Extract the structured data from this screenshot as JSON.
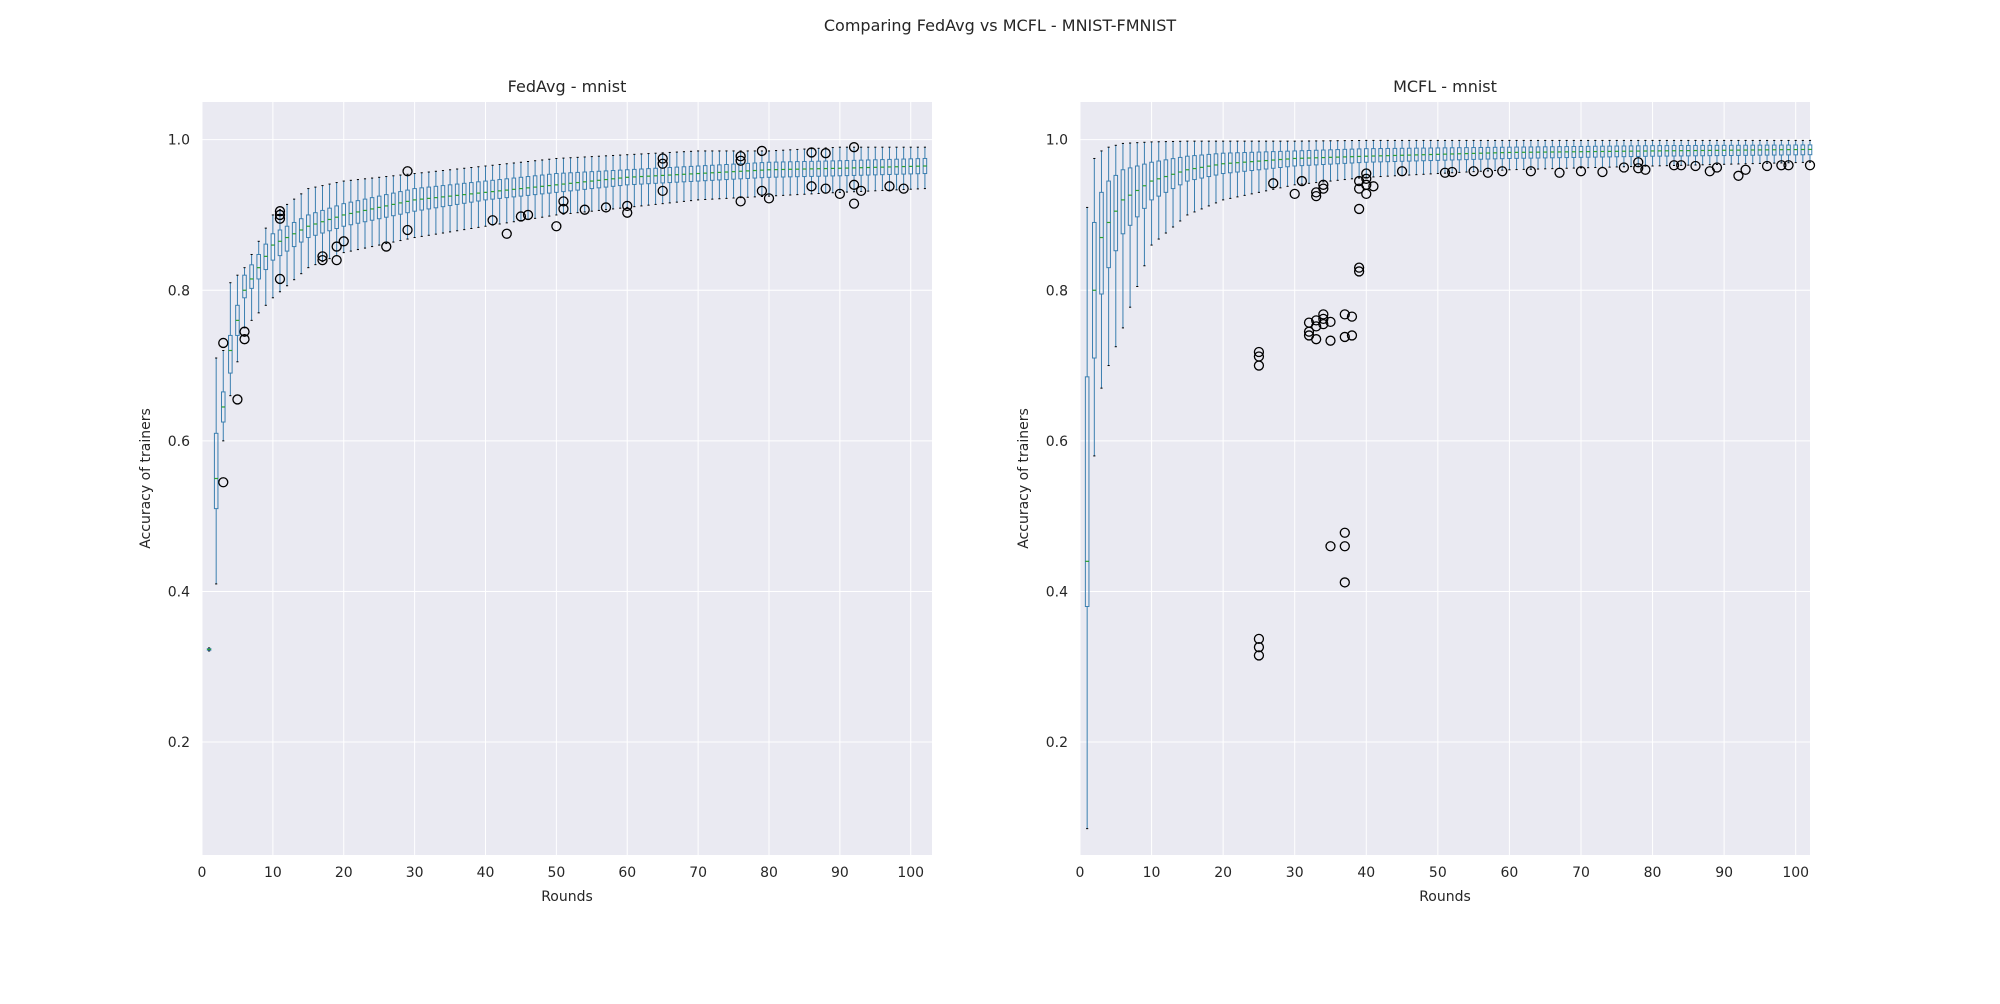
{
  "figure": {
    "title": "Comparing FedAvg vs MCFL - MNIST-FMNIST"
  },
  "chart_data": [
    {
      "type": "box",
      "title": "FedAvg - mnist",
      "xlabel": "Rounds",
      "ylabel": "Accuracy of trainers",
      "xlim": [
        0,
        103
      ],
      "ylim": [
        0.05,
        1.05
      ],
      "xticks": [
        0,
        10,
        20,
        30,
        40,
        50,
        60,
        70,
        80,
        90,
        100
      ],
      "yticks": [
        0.2,
        0.4,
        0.6,
        0.8,
        1.0
      ],
      "xtick_labels": [
        "0",
        "10",
        "20",
        "30",
        "40",
        "50",
        "60",
        "70",
        "80",
        "90",
        "100"
      ],
      "ytick_labels": [
        "0.2",
        "0.4",
        "0.6",
        "0.8",
        "1.0"
      ],
      "grid": true,
      "rounds": {
        "start": 1,
        "end": 102
      },
      "box_colors": {
        "box": "#3b7fb0",
        "median": "#2ca02c",
        "flier": "#000000"
      },
      "anchors": [
        {
          "round": 1,
          "q1": 0.322,
          "med": 0.323,
          "q3": 0.324,
          "lo": 0.321,
          "hi": 0.325
        },
        {
          "round": 2,
          "q1": 0.51,
          "med": 0.55,
          "q3": 0.61,
          "lo": 0.41,
          "hi": 0.71
        },
        {
          "round": 3,
          "q1": 0.625,
          "med": 0.645,
          "q3": 0.665,
          "lo": 0.6,
          "hi": 0.72
        },
        {
          "round": 4,
          "q1": 0.69,
          "med": 0.72,
          "q3": 0.74,
          "lo": 0.66,
          "hi": 0.81
        },
        {
          "round": 6,
          "q1": 0.79,
          "med": 0.8,
          "q3": 0.82,
          "lo": 0.75,
          "hi": 0.83
        },
        {
          "round": 10,
          "q1": 0.84,
          "med": 0.86,
          "q3": 0.875,
          "lo": 0.79,
          "hi": 0.9
        },
        {
          "round": 15,
          "q1": 0.87,
          "med": 0.885,
          "q3": 0.9,
          "lo": 0.83,
          "hi": 0.935
        },
        {
          "round": 20,
          "q1": 0.885,
          "med": 0.9,
          "q3": 0.915,
          "lo": 0.85,
          "hi": 0.945
        },
        {
          "round": 30,
          "q1": 0.905,
          "med": 0.92,
          "q3": 0.935,
          "lo": 0.87,
          "hi": 0.955
        },
        {
          "round": 40,
          "q1": 0.92,
          "med": 0.93,
          "q3": 0.945,
          "lo": 0.885,
          "hi": 0.965
        },
        {
          "round": 50,
          "q1": 0.93,
          "med": 0.94,
          "q3": 0.955,
          "lo": 0.9,
          "hi": 0.975
        },
        {
          "round": 60,
          "q1": 0.94,
          "med": 0.95,
          "q3": 0.96,
          "lo": 0.91,
          "hi": 0.98
        },
        {
          "round": 70,
          "q1": 0.945,
          "med": 0.955,
          "q3": 0.965,
          "lo": 0.92,
          "hi": 0.985
        },
        {
          "round": 80,
          "q1": 0.95,
          "med": 0.96,
          "q3": 0.97,
          "lo": 0.925,
          "hi": 0.985
        },
        {
          "round": 90,
          "q1": 0.952,
          "med": 0.962,
          "q3": 0.972,
          "lo": 0.93,
          "hi": 0.99
        },
        {
          "round": 102,
          "q1": 0.955,
          "med": 0.965,
          "q3": 0.975,
          "lo": 0.935,
          "hi": 0.99
        }
      ],
      "outliers": [
        {
          "round": 3,
          "value": 0.545
        },
        {
          "round": 3,
          "value": 0.73
        },
        {
          "round": 5,
          "value": 0.655
        },
        {
          "round": 6,
          "value": 0.735
        },
        {
          "round": 6,
          "value": 0.745
        },
        {
          "round": 11,
          "value": 0.815
        },
        {
          "round": 11,
          "value": 0.895
        },
        {
          "round": 11,
          "value": 0.9
        },
        {
          "round": 11,
          "value": 0.905
        },
        {
          "round": 17,
          "value": 0.84
        },
        {
          "round": 17,
          "value": 0.845
        },
        {
          "round": 19,
          "value": 0.84
        },
        {
          "round": 19,
          "value": 0.858
        },
        {
          "round": 20,
          "value": 0.865
        },
        {
          "round": 26,
          "value": 0.858
        },
        {
          "round": 29,
          "value": 0.88
        },
        {
          "round": 29,
          "value": 0.958
        },
        {
          "round": 41,
          "value": 0.893
        },
        {
          "round": 43,
          "value": 0.875
        },
        {
          "round": 45,
          "value": 0.898
        },
        {
          "round": 46,
          "value": 0.9
        },
        {
          "round": 50,
          "value": 0.885
        },
        {
          "round": 51,
          "value": 0.908
        },
        {
          "round": 51,
          "value": 0.918
        },
        {
          "round": 54,
          "value": 0.907
        },
        {
          "round": 57,
          "value": 0.91
        },
        {
          "round": 60,
          "value": 0.903
        },
        {
          "round": 60,
          "value": 0.912
        },
        {
          "round": 65,
          "value": 0.932
        },
        {
          "round": 65,
          "value": 0.968
        },
        {
          "round": 65,
          "value": 0.975
        },
        {
          "round": 76,
          "value": 0.918
        },
        {
          "round": 76,
          "value": 0.972
        },
        {
          "round": 76,
          "value": 0.978
        },
        {
          "round": 79,
          "value": 0.932
        },
        {
          "round": 79,
          "value": 0.985
        },
        {
          "round": 80,
          "value": 0.922
        },
        {
          "round": 86,
          "value": 0.938
        },
        {
          "round": 86,
          "value": 0.983
        },
        {
          "round": 88,
          "value": 0.935
        },
        {
          "round": 88,
          "value": 0.982
        },
        {
          "round": 90,
          "value": 0.928
        },
        {
          "round": 92,
          "value": 0.915
        },
        {
          "round": 92,
          "value": 0.94
        },
        {
          "round": 92,
          "value": 0.99
        },
        {
          "round": 93,
          "value": 0.932
        },
        {
          "round": 97,
          "value": 0.938
        },
        {
          "round": 99,
          "value": 0.935
        }
      ]
    },
    {
      "type": "box",
      "title": "MCFL - mnist",
      "xlabel": "Rounds",
      "ylabel": "Accuracy of trainers",
      "xlim": [
        0,
        102
      ],
      "ylim": [
        0.05,
        1.05
      ],
      "xticks": [
        0,
        10,
        20,
        30,
        40,
        50,
        60,
        70,
        80,
        90,
        100
      ],
      "yticks": [
        0.2,
        0.4,
        0.6,
        0.8,
        1.0
      ],
      "xtick_labels": [
        "0",
        "10",
        "20",
        "30",
        "40",
        "50",
        "60",
        "70",
        "80",
        "90",
        "100"
      ],
      "ytick_labels": [
        "0.2",
        "0.4",
        "0.6",
        "0.8",
        "1.0"
      ],
      "grid": true,
      "rounds": {
        "start": 1,
        "end": 102
      },
      "box_colors": {
        "box": "#3b7fb0",
        "median": "#2ca02c",
        "flier": "#000000"
      },
      "anchors": [
        {
          "round": 1,
          "q1": 0.38,
          "med": 0.44,
          "q3": 0.685,
          "lo": 0.085,
          "hi": 0.91
        },
        {
          "round": 2,
          "q1": 0.71,
          "med": 0.8,
          "q3": 0.89,
          "lo": 0.58,
          "hi": 0.975
        },
        {
          "round": 3,
          "q1": 0.795,
          "med": 0.87,
          "q3": 0.93,
          "lo": 0.67,
          "hi": 0.985
        },
        {
          "round": 4,
          "q1": 0.83,
          "med": 0.89,
          "q3": 0.945,
          "lo": 0.7,
          "hi": 0.99
        },
        {
          "round": 6,
          "q1": 0.875,
          "med": 0.92,
          "q3": 0.96,
          "lo": 0.75,
          "hi": 0.995
        },
        {
          "round": 10,
          "q1": 0.92,
          "med": 0.945,
          "q3": 0.97,
          "lo": 0.86,
          "hi": 0.997
        },
        {
          "round": 15,
          "q1": 0.945,
          "med": 0.96,
          "q3": 0.978,
          "lo": 0.9,
          "hi": 0.998
        },
        {
          "round": 20,
          "q1": 0.955,
          "med": 0.968,
          "q3": 0.982,
          "lo": 0.92,
          "hi": 0.998
        },
        {
          "round": 30,
          "q1": 0.965,
          "med": 0.975,
          "q3": 0.985,
          "lo": 0.94,
          "hi": 0.998
        },
        {
          "round": 40,
          "q1": 0.97,
          "med": 0.978,
          "q3": 0.988,
          "lo": 0.95,
          "hi": 0.999
        },
        {
          "round": 60,
          "q1": 0.975,
          "med": 0.983,
          "q3": 0.99,
          "lo": 0.96,
          "hi": 0.999
        },
        {
          "round": 80,
          "q1": 0.978,
          "med": 0.985,
          "q3": 0.992,
          "lo": 0.965,
          "hi": 0.999
        },
        {
          "round": 102,
          "q1": 0.98,
          "med": 0.987,
          "q3": 0.993,
          "lo": 0.97,
          "hi": 0.999
        }
      ],
      "outliers": [
        {
          "round": 25,
          "value": 0.7
        },
        {
          "round": 25,
          "value": 0.712
        },
        {
          "round": 25,
          "value": 0.718
        },
        {
          "round": 25,
          "value": 0.315
        },
        {
          "round": 25,
          "value": 0.326
        },
        {
          "round": 25,
          "value": 0.337
        },
        {
          "round": 27,
          "value": 0.942
        },
        {
          "round": 30,
          "value": 0.928
        },
        {
          "round": 31,
          "value": 0.945
        },
        {
          "round": 32,
          "value": 0.74
        },
        {
          "round": 32,
          "value": 0.745
        },
        {
          "round": 32,
          "value": 0.757
        },
        {
          "round": 33,
          "value": 0.735
        },
        {
          "round": 33,
          "value": 0.752
        },
        {
          "round": 33,
          "value": 0.76
        },
        {
          "round": 33,
          "value": 0.925
        },
        {
          "round": 33,
          "value": 0.93
        },
        {
          "round": 34,
          "value": 0.755
        },
        {
          "round": 34,
          "value": 0.762
        },
        {
          "round": 34,
          "value": 0.768
        },
        {
          "round": 34,
          "value": 0.935
        },
        {
          "round": 34,
          "value": 0.94
        },
        {
          "round": 35,
          "value": 0.46
        },
        {
          "round": 35,
          "value": 0.733
        },
        {
          "round": 35,
          "value": 0.758
        },
        {
          "round": 37,
          "value": 0.412
        },
        {
          "round": 37,
          "value": 0.46
        },
        {
          "round": 37,
          "value": 0.478
        },
        {
          "round": 37,
          "value": 0.738
        },
        {
          "round": 37,
          "value": 0.768
        },
        {
          "round": 38,
          "value": 0.74
        },
        {
          "round": 38,
          "value": 0.765
        },
        {
          "round": 39,
          "value": 0.825
        },
        {
          "round": 39,
          "value": 0.83
        },
        {
          "round": 39,
          "value": 0.908
        },
        {
          "round": 39,
          "value": 0.935
        },
        {
          "round": 39,
          "value": 0.945
        },
        {
          "round": 40,
          "value": 0.928
        },
        {
          "round": 40,
          "value": 0.94
        },
        {
          "round": 40,
          "value": 0.948
        },
        {
          "round": 40,
          "value": 0.955
        },
        {
          "round": 41,
          "value": 0.938
        },
        {
          "round": 45,
          "value": 0.958
        },
        {
          "round": 51,
          "value": 0.956
        },
        {
          "round": 52,
          "value": 0.957
        },
        {
          "round": 55,
          "value": 0.958
        },
        {
          "round": 57,
          "value": 0.956
        },
        {
          "round": 59,
          "value": 0.958
        },
        {
          "round": 63,
          "value": 0.958
        },
        {
          "round": 67,
          "value": 0.956
        },
        {
          "round": 70,
          "value": 0.958
        },
        {
          "round": 73,
          "value": 0.957
        },
        {
          "round": 76,
          "value": 0.963
        },
        {
          "round": 78,
          "value": 0.962
        },
        {
          "round": 78,
          "value": 0.97
        },
        {
          "round": 79,
          "value": 0.96
        },
        {
          "round": 83,
          "value": 0.966
        },
        {
          "round": 84,
          "value": 0.966
        },
        {
          "round": 86,
          "value": 0.965
        },
        {
          "round": 88,
          "value": 0.958
        },
        {
          "round": 89,
          "value": 0.963
        },
        {
          "round": 92,
          "value": 0.952
        },
        {
          "round": 93,
          "value": 0.96
        },
        {
          "round": 96,
          "value": 0.965
        },
        {
          "round": 98,
          "value": 0.966
        },
        {
          "round": 99,
          "value": 0.966
        },
        {
          "round": 102,
          "value": 0.966
        }
      ]
    }
  ]
}
